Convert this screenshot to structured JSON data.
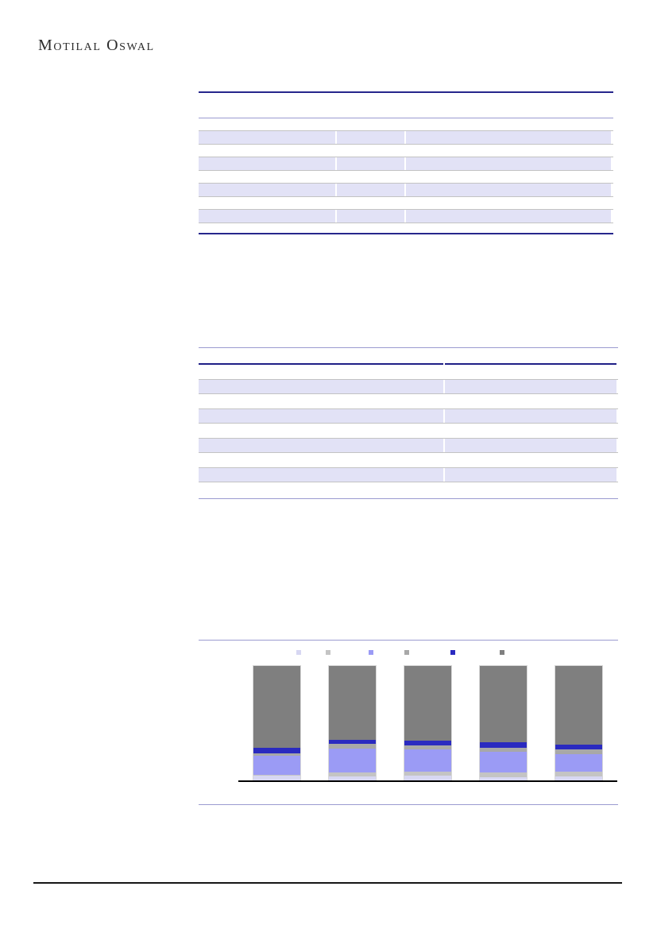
{
  "logo": {
    "text": "Motilal Oswal"
  },
  "colors": {
    "navy_rule": "#26268c",
    "navy_rule_dark": "#1f1f86",
    "thin_purple_rule": "#9b9bd0",
    "shaded_row_fill": "#e2e2f6",
    "row_border": "#c3c3c3",
    "chart_baseline": "#000000",
    "footer_rule": "#161616"
  },
  "tables": {
    "top": {
      "title": "",
      "header_text": "",
      "column_fractions": [
        0.33,
        0.163,
        0.493
      ],
      "shaded_row_count": 4,
      "cell_text": "",
      "fill_color": "#e2e2f6",
      "rule_color": "#26268c"
    },
    "bottom": {
      "title": "",
      "header_text": "",
      "column_fractions": [
        0.583,
        0.409
      ],
      "shaded_row_count": 4,
      "cell_text": "",
      "fill_color": "#e2e2f6",
      "rule_color": "#1f1f86"
    }
  },
  "chart_data": {
    "type": "bar",
    "subtype": "stacked-100-percent",
    "title": "",
    "xlabel": "",
    "ylabel": "",
    "categories": [
      "",
      "",
      "",
      "",
      ""
    ],
    "ylim": [
      0,
      100
    ],
    "grid": false,
    "axes_labels_visible": false,
    "legend_position": "top",
    "series": [
      {
        "name": "",
        "color": "#d7d7f2",
        "values": [
          4.8,
          4.1,
          4.8,
          3.4,
          4.1
        ]
      },
      {
        "name": "",
        "color": "#c4c4c4",
        "values": [
          0.7,
          3.4,
          3.4,
          4.1,
          4.1
        ]
      },
      {
        "name": "",
        "color": "#9b9bf5",
        "values": [
          16.4,
          20.5,
          19.2,
          17.8,
          15.1
        ]
      },
      {
        "name": "",
        "color": "#a8a8a8",
        "values": [
          2.1,
          4.1,
          3.4,
          3.4,
          4.1
        ]
      },
      {
        "name": "",
        "color": "#2a2ac0",
        "values": [
          4.8,
          4.1,
          4.1,
          4.8,
          4.1
        ]
      },
      {
        "name": "",
        "color": "#7f7f7f",
        "values": [
          71.2,
          63.8,
          65.1,
          66.5,
          68.5
        ]
      }
    ]
  }
}
